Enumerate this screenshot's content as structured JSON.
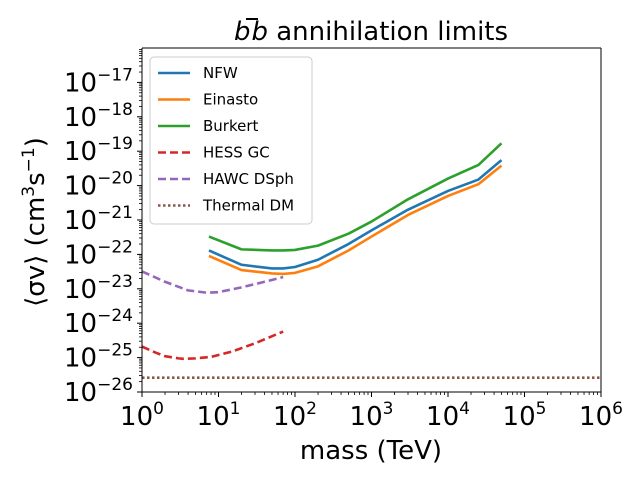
{
  "chart_data": {
    "type": "line",
    "title": "b̄b annihilation limits",
    "title_parts": {
      "b1": "b",
      "b2": "b",
      "rest": " annihilation limits"
    },
    "xlabel": "mass (TeV)",
    "ylabel": "⟨σv⟩ (cm³s⁻¹)",
    "ylabel_parts": {
      "sv": "⟨σv⟩",
      "open": " (cm",
      "sup3": "3",
      "s": "s",
      "supm1": "−1",
      "close": ")"
    },
    "xscale": "log",
    "yscale": "log",
    "xlim": [
      1,
      1000000
    ],
    "ylim": [
      1e-26,
      1e-16
    ],
    "xticks": [
      {
        "value": 1,
        "base": "10",
        "exp": "0"
      },
      {
        "value": 10,
        "base": "10",
        "exp": "1"
      },
      {
        "value": 100,
        "base": "10",
        "exp": "2"
      },
      {
        "value": 1000,
        "base": "10",
        "exp": "3"
      },
      {
        "value": 10000,
        "base": "10",
        "exp": "4"
      },
      {
        "value": 100000,
        "base": "10",
        "exp": "5"
      },
      {
        "value": 1000000,
        "base": "10",
        "exp": "6"
      }
    ],
    "yticks": [
      {
        "value": 1e-26,
        "base": "10",
        "exp": "−26"
      },
      {
        "value": 1e-25,
        "base": "10",
        "exp": "−25"
      },
      {
        "value": 1e-24,
        "base": "10",
        "exp": "−24"
      },
      {
        "value": 1e-23,
        "base": "10",
        "exp": "−23"
      },
      {
        "value": 1e-22,
        "base": "10",
        "exp": "−22"
      },
      {
        "value": 1e-21,
        "base": "10",
        "exp": "−21"
      },
      {
        "value": 1e-20,
        "base": "10",
        "exp": "−20"
      },
      {
        "value": 1e-19,
        "base": "10",
        "exp": "−19"
      },
      {
        "value": 1e-18,
        "base": "10",
        "exp": "−18"
      },
      {
        "value": 1e-17,
        "base": "10",
        "exp": "−17"
      }
    ],
    "legend_position": "upper-left",
    "series": [
      {
        "name": "NFW",
        "color": "#1f77b4",
        "style": "solid",
        "x": [
          7.5,
          20,
          50,
          70,
          100,
          200,
          500,
          1000,
          3000,
          10000,
          25000,
          50000
        ],
        "y": [
          1.3e-22,
          5e-23,
          3.9e-23,
          3.9e-23,
          4.3e-23,
          7e-23,
          2e-22,
          5e-22,
          2e-21,
          7e-21,
          1.5e-20,
          5.5e-20
        ]
      },
      {
        "name": "Einasto",
        "color": "#ff7f0e",
        "style": "solid",
        "x": [
          7.5,
          20,
          50,
          70,
          100,
          200,
          500,
          1000,
          3000,
          10000,
          25000,
          50000
        ],
        "y": [
          9e-23,
          3.5e-23,
          2.8e-23,
          2.7e-23,
          2.9e-23,
          4.5e-23,
          1.3e-22,
          3.3e-22,
          1.4e-21,
          5e-21,
          1.1e-20,
          3.8e-20
        ]
      },
      {
        "name": "Burkert",
        "color": "#2ca02c",
        "style": "solid",
        "x": [
          7.5,
          20,
          50,
          70,
          100,
          200,
          500,
          1000,
          3000,
          10000,
          25000,
          50000
        ],
        "y": [
          3.3e-22,
          1.4e-22,
          1.3e-22,
          1.3e-22,
          1.35e-22,
          1.8e-22,
          4e-22,
          9e-22,
          4e-21,
          1.6e-20,
          4e-20,
          1.7e-19
        ]
      },
      {
        "name": "HESS GC",
        "color": "#d62728",
        "style": "dashed",
        "x": [
          1,
          1.5,
          2,
          3,
          3.5,
          5,
          8,
          15,
          30,
          70
        ],
        "y": [
          2.1e-25,
          1.4e-25,
          1.1e-25,
          9.5e-26,
          9.2e-26,
          9.5e-26,
          1.05e-25,
          1.5e-25,
          2.6e-25,
          5.7e-25
        ]
      },
      {
        "name": "HAWC DSph",
        "color": "#9467bd",
        "style": "dashed",
        "x": [
          1,
          2,
          4,
          7,
          10,
          20,
          40,
          70
        ],
        "y": [
          3.2e-23,
          1.6e-23,
          9e-24,
          7.7e-24,
          8e-24,
          1.1e-23,
          1.6e-23,
          2.2e-23
        ]
      },
      {
        "name": "Thermal DM",
        "color": "#8c564b",
        "style": "dotted",
        "x": [
          1,
          1000000
        ],
        "y": [
          2.6e-26,
          2.6e-26
        ]
      }
    ]
  }
}
